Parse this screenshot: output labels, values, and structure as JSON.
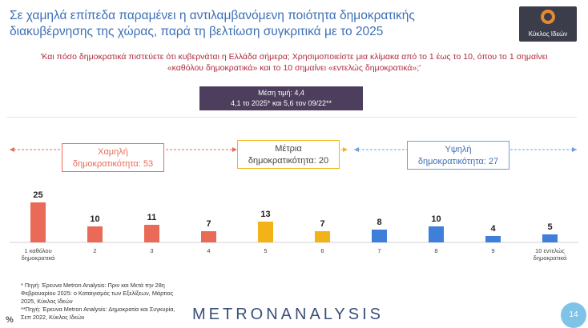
{
  "header": {
    "title_line1": "Σε χαμηλά επίπεδα παραμένει η αντιλαμβανόμενη ποιότητα δημοκρατικής",
    "title_line2": "διακυβέρνησης της χώρας, παρά τη βελτίωση συγκριτικά με το 2025",
    "logo_text": "Κύκλος Ιδεών"
  },
  "question": {
    "line1": "'Και πόσο δημοκρατικά πιστεύετε ότι κυβερνάται η Ελλάδα σήμερα; Χρησιμοποιείστε μια κλίμακα από το 1 έως το 10, όπου το 1 σημαίνει",
    "line2": "«καθόλου δημοκρατικά» και το 10 σημαίνει «εντελώς δημοκρατικά»;'"
  },
  "mean_box": {
    "line1": "Μέση τιμή: 4,4",
    "line2": "4,1 το 2025* και 5,6 τον 09/22**"
  },
  "groups": {
    "low": {
      "line1": "Χαμηλή",
      "line2": "δημοκρατικότητα: 53",
      "color": "#e96b57"
    },
    "mid": {
      "line1": "Μέτρια",
      "line2": "δημοκρατικότητα: 20",
      "color": "#f2b319"
    },
    "high": {
      "line1": "Υψηλή",
      "line2": "δημοκρατικότητα: 27",
      "color": "#6ea0dc"
    }
  },
  "chart_data": {
    "type": "bar",
    "categories": [
      "1 καθόλου δημοκρατικά",
      "2",
      "3",
      "4",
      "5",
      "6",
      "7",
      "8",
      "9",
      "10 εντελώς δημοκρατικά"
    ],
    "values": [
      25,
      10,
      11,
      7,
      13,
      7,
      8,
      10,
      4,
      5
    ],
    "colors": [
      "#e96b57",
      "#e96b57",
      "#e96b57",
      "#e96b57",
      "#f2b319",
      "#f2b319",
      "#3d7fd9",
      "#3d7fd9",
      "#3d7fd9",
      "#3d7fd9"
    ],
    "ylim": [
      0,
      30
    ],
    "grid": false,
    "unit": "%"
  },
  "footnotes": {
    "line1": "* Πηγή: Έρευνα Metron Analysis: Πριν και Μετά την 28η",
    "line2": "Φεβρουαρίου 2025: ο Καταιγισμός των Εξελίξεων, Μάρτιος",
    "line3": "2025, Κύκλος Ιδεών",
    "line4": "**Πηγή: Έρευνα Metron Analysis: Δημοκρατία και Συγκυρία,",
    "line5": "Σεπ 2022, Κύκλος Ιδεών"
  },
  "footer": {
    "percent_symbol": "%",
    "brand": "METRONANALYSIS",
    "page_number": "14"
  }
}
